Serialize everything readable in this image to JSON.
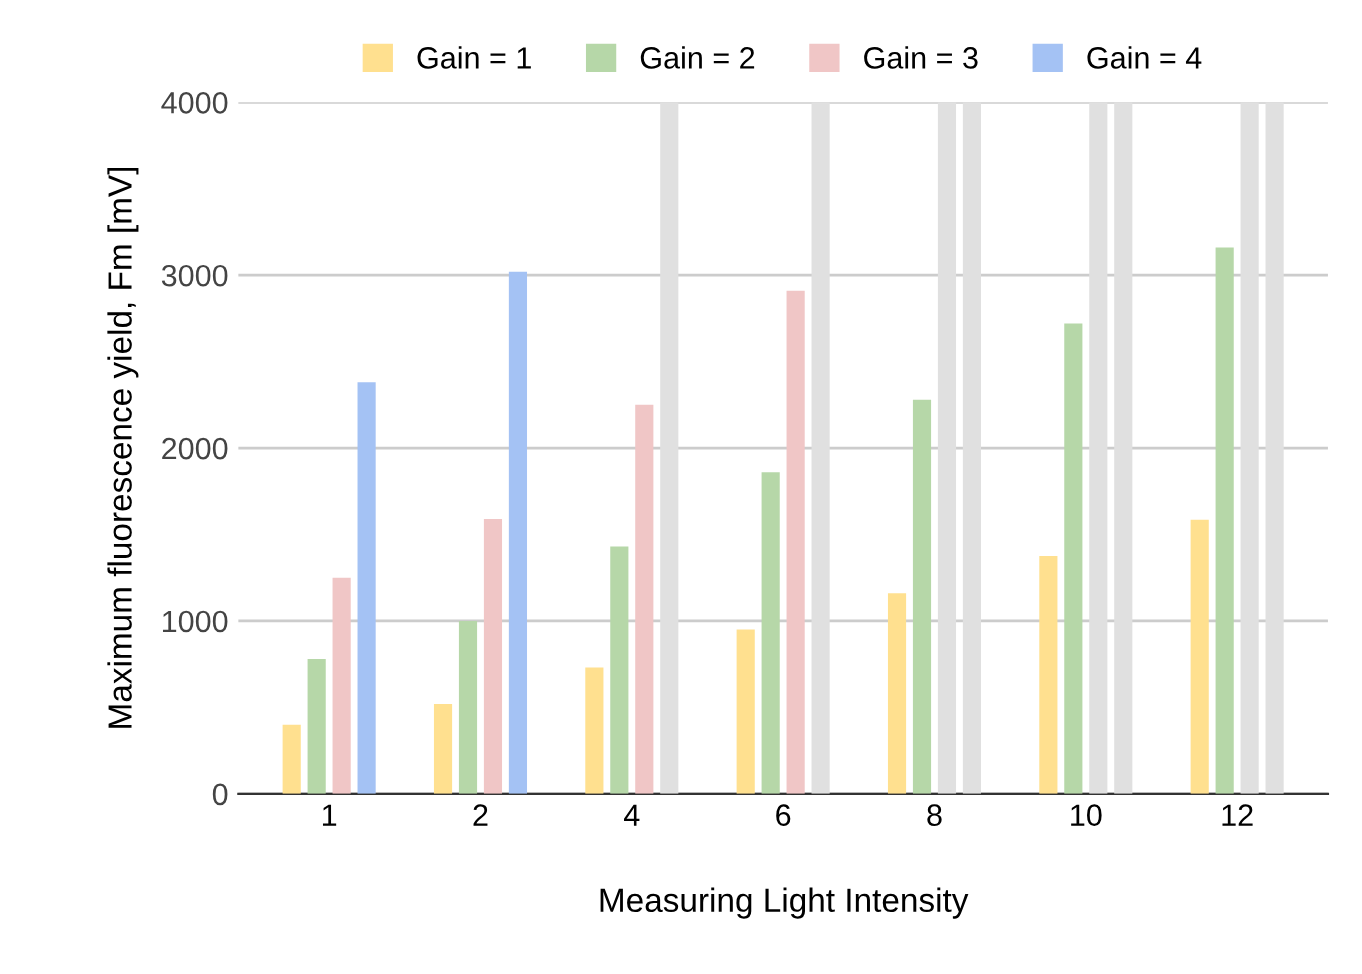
{
  "chart_data": {
    "type": "bar",
    "xlabel": "Measuring Light Intensity",
    "ylabel": "Maximum fluorescence yield, Fm [mV]",
    "categories": [
      "1",
      "2",
      "4",
      "6",
      "8",
      "10",
      "12"
    ],
    "series": [
      {
        "name": "Gain = 1",
        "color": "#ffe08f",
        "values": [
          400,
          520,
          730,
          950,
          1160,
          1375,
          1585
        ]
      },
      {
        "name": "Gain = 2",
        "color": "#b6d7a8",
        "values": [
          780,
          1000,
          1430,
          1860,
          2280,
          2720,
          3160
        ]
      },
      {
        "name": "Gain = 3",
        "color": "#f0c6c6",
        "colors": [
          "#f0c6c6",
          "#f0c6c6",
          "#f0c6c6",
          "#f0c6c6",
          "#e0e0e0",
          "#e0e0e0",
          "#e0e0e0"
        ],
        "values": [
          1250,
          1590,
          2250,
          2910,
          4000,
          4000,
          4000
        ]
      },
      {
        "name": "Gain = 4",
        "color": "#a4c2f4",
        "colors": [
          "#a4c2f4",
          "#a4c2f4",
          "#e0e0e0",
          "#e0e0e0",
          "#e0e0e0",
          "#e0e0e0",
          "#e0e0e0"
        ],
        "values": [
          2380,
          3020,
          4000,
          4000,
          4000,
          4000,
          4000
        ]
      }
    ],
    "ylim": [
      0,
      4000
    ],
    "yticks": [
      0,
      1000,
      2000,
      3000,
      4000
    ],
    "grid": "y",
    "legend": "top"
  }
}
